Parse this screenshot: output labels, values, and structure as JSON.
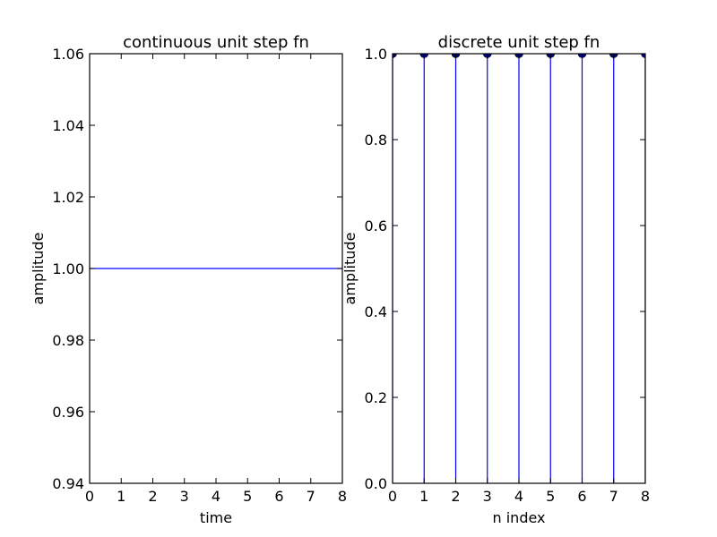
{
  "chart_data": [
    {
      "type": "line",
      "title": "continuous unit step fn",
      "xlabel": "time",
      "ylabel": "amplitude",
      "xlim": [
        0,
        8
      ],
      "ylim": [
        0.94,
        1.06
      ],
      "xticks": [
        "0",
        "1",
        "2",
        "3",
        "4",
        "5",
        "6",
        "7",
        "8"
      ],
      "yticks": [
        "0.94",
        "0.96",
        "0.98",
        "1.00",
        "1.02",
        "1.04",
        "1.06"
      ],
      "grid": false,
      "color": "#0000ff",
      "series": [
        {
          "x": [
            0,
            8
          ],
          "y": [
            1,
            1
          ]
        }
      ]
    },
    {
      "type": "stem",
      "title": "discrete unit step fn",
      "xlabel": "n index",
      "ylabel": "amplitude",
      "xlim": [
        0,
        8
      ],
      "ylim": [
        0.0,
        1.0
      ],
      "xticks": [
        "0",
        "1",
        "2",
        "3",
        "4",
        "5",
        "6",
        "7",
        "8"
      ],
      "yticks": [
        "0.0",
        "0.2",
        "0.4",
        "0.6",
        "0.8",
        "1.0"
      ],
      "grid": false,
      "color": "#0000ff",
      "marker_color": "#000080",
      "series": [
        {
          "x": [
            0,
            1,
            2,
            3,
            4,
            5,
            6,
            7,
            8
          ],
          "y": [
            1,
            1,
            1,
            1,
            1,
            1,
            1,
            1,
            1
          ]
        }
      ]
    }
  ]
}
